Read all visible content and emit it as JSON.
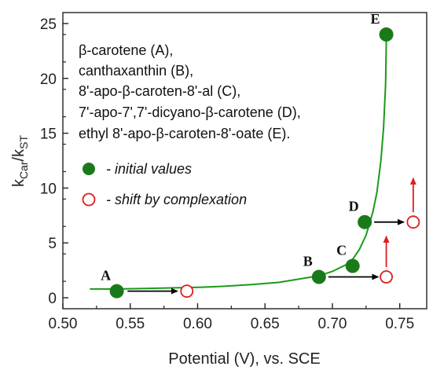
{
  "chart_data": {
    "type": "scatter",
    "xlabel": "Potential (V), vs. SCE",
    "ylabel": {
      "main": "k",
      "sub1": "Car",
      "slash": "/k",
      "sub2": "ST"
    },
    "xlim": [
      0.5,
      0.77
    ],
    "ylim": [
      -1,
      26
    ],
    "x_ticks": [
      0.5,
      0.55,
      0.6,
      0.65,
      0.7,
      0.75
    ],
    "x_tick_labels": [
      "0.50",
      "0.55",
      "0.60",
      "0.65",
      "0.70",
      "0.75"
    ],
    "y_ticks": [
      0,
      5,
      10,
      15,
      20,
      25
    ],
    "y_tick_labels": [
      "0",
      "5",
      "10",
      "15",
      "20",
      "25"
    ],
    "legend_compounds": [
      "β-carotene (A),",
      "canthaxanthin (B),",
      "8'-apo-β-caroten-8'-al (C),",
      "7'-apo-7',7'-dicyano-β-carotene (D),",
      "ethyl 8'-apo-β-caroten-8'-oate (E)."
    ],
    "legend_markers": [
      {
        "label": "- initial values",
        "style": "filled",
        "color": "#1a7a1a"
      },
      {
        "label": "- shift by complexation",
        "style": "open",
        "color": "#e01c1c"
      }
    ],
    "series": [
      {
        "name": "initial values",
        "style": "filled",
        "color": "#1a7a1a",
        "points": [
          {
            "label": "A",
            "x": 0.54,
            "y": 0.6
          },
          {
            "label": "B",
            "x": 0.69,
            "y": 1.9
          },
          {
            "label": "C",
            "x": 0.715,
            "y": 2.9
          },
          {
            "label": "D",
            "x": 0.724,
            "y": 6.9
          },
          {
            "label": "E",
            "x": 0.74,
            "y": 24.0
          }
        ]
      },
      {
        "name": "shift by complexation",
        "style": "open",
        "color": "#e01c1c",
        "points": [
          {
            "x": 0.592,
            "y": 0.6
          },
          {
            "x": 0.74,
            "y": 1.9
          },
          {
            "x": 0.76,
            "y": 6.9
          }
        ]
      }
    ],
    "curve": {
      "color": "#1a9a1a",
      "points": [
        [
          0.52,
          0.8
        ],
        [
          0.54,
          0.8
        ],
        [
          0.56,
          0.85
        ],
        [
          0.58,
          0.9
        ],
        [
          0.6,
          0.95
        ],
        [
          0.62,
          1.05
        ],
        [
          0.64,
          1.2
        ],
        [
          0.66,
          1.4
        ],
        [
          0.68,
          1.8
        ],
        [
          0.69,
          2.0
        ],
        [
          0.7,
          2.4
        ],
        [
          0.71,
          3.0
        ],
        [
          0.715,
          3.5
        ],
        [
          0.72,
          4.4
        ],
        [
          0.725,
          5.7
        ],
        [
          0.73,
          7.8
        ],
        [
          0.733,
          9.6
        ],
        [
          0.736,
          12.5
        ],
        [
          0.738,
          15.5
        ],
        [
          0.7395,
          19.5
        ],
        [
          0.74,
          23.5
        ]
      ]
    },
    "arrows": [
      {
        "type": "shift",
        "color": "#000000",
        "from": [
          0.548,
          0.6
        ],
        "to": [
          0.585,
          0.6
        ]
      },
      {
        "type": "shift",
        "color": "#000000",
        "from": [
          0.697,
          1.9
        ],
        "to": [
          0.734,
          1.9
        ]
      },
      {
        "type": "shift",
        "color": "#000000",
        "from": [
          0.731,
          6.9
        ],
        "to": [
          0.753,
          6.9
        ]
      },
      {
        "type": "rise",
        "color": "#e01c1c",
        "from": [
          0.74,
          2.8
        ],
        "to": [
          0.74,
          5.6
        ]
      },
      {
        "type": "rise",
        "color": "#e01c1c",
        "from": [
          0.76,
          7.8
        ],
        "to": [
          0.76,
          10.9
        ]
      }
    ],
    "label_offsets_note": "A left, B left, C left, D left, E left of points"
  }
}
